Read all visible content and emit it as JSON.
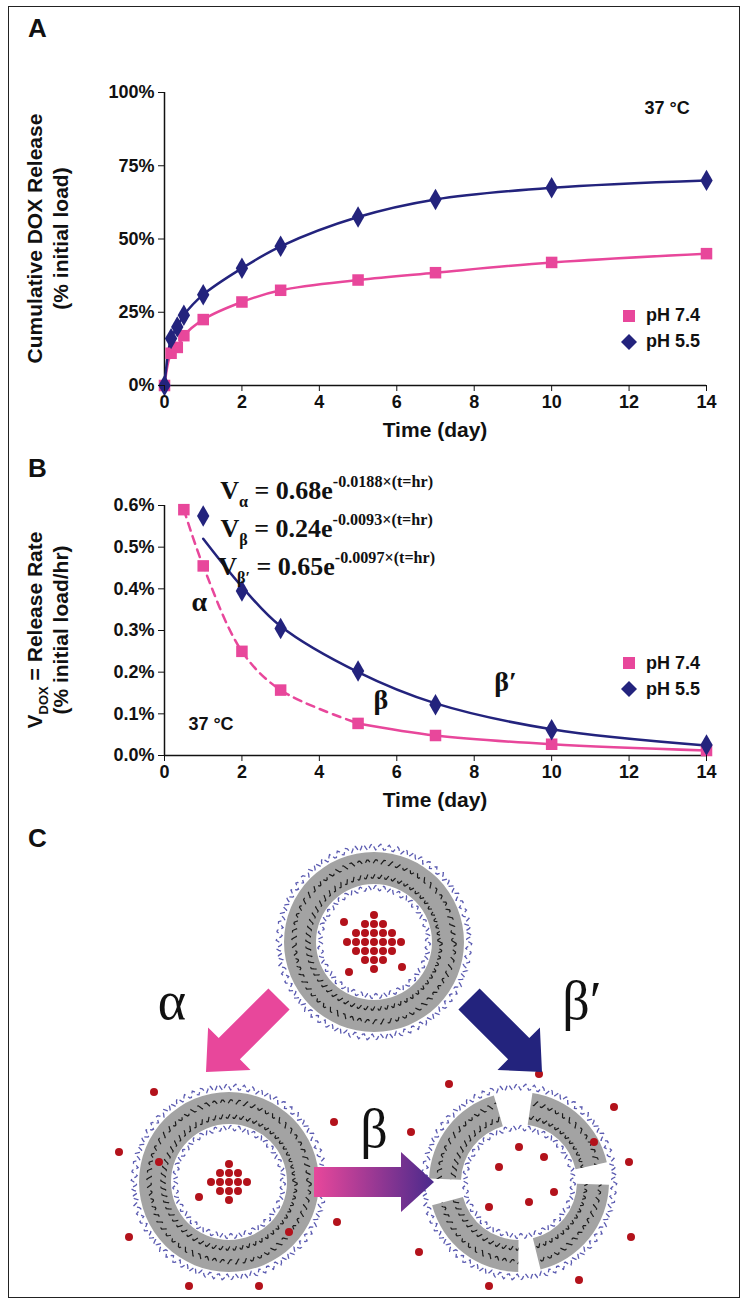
{
  "chart_data": [
    {
      "panel_label": "A",
      "type": "line",
      "xlabel": "Time (day)",
      "ylabel": [
        [
          {
            "text": "Cumulative DOX Release"
          }
        ],
        [
          {
            "text": "(% initial load)"
          }
        ]
      ],
      "annotations": [
        "37 °C"
      ],
      "xlim": [
        0,
        14
      ],
      "xticks": [
        0,
        2,
        4,
        6,
        8,
        10,
        12,
        14
      ],
      "ylim": [
        0,
        100
      ],
      "yticks": [
        {
          "value": 0,
          "label": "0%"
        },
        {
          "value": 25,
          "label": "25%"
        },
        {
          "value": 50,
          "label": "50%"
        },
        {
          "value": 75,
          "label": "75%"
        },
        {
          "value": 100,
          "label": "100%"
        }
      ],
      "legend": "right",
      "series": [
        {
          "name": "pH 7.4",
          "color": "#e8479b",
          "marker": "square",
          "x": [
            0,
            0.17,
            0.33,
            0.5,
            1,
            2,
            3,
            5,
            7,
            10,
            14
          ],
          "values": [
            0,
            11,
            13,
            17,
            22.5,
            28.5,
            32.5,
            36,
            38.5,
            42,
            45
          ]
        },
        {
          "name": "pH 5.5",
          "color": "#23237d",
          "marker": "diamond",
          "x": [
            0,
            0.17,
            0.33,
            0.5,
            1,
            2,
            3,
            5,
            7,
            10,
            14
          ],
          "values": [
            0,
            16,
            20,
            24,
            31,
            40,
            47.5,
            57.5,
            63.5,
            67.5,
            70
          ]
        }
      ]
    },
    {
      "panel_label": "B",
      "type": "scatter",
      "xlabel": "Time (day)",
      "ylabel": [
        [
          {
            "text": "V"
          },
          {
            "text": "DOX",
            "sub": true
          },
          {
            "text": " = Release Rate"
          }
        ],
        [
          {
            "text": "(% initial load/hr)"
          }
        ]
      ],
      "annotations": [
        "37 °C"
      ],
      "equations": [
        [
          {
            "text": "V"
          },
          {
            "text": "α",
            "sub": true
          },
          {
            "text": " = 0.68e"
          },
          {
            "text": "-0.0188×(t=hr)",
            "sup": true
          }
        ],
        [
          {
            "text": "V"
          },
          {
            "text": "β",
            "sub": true
          },
          {
            "text": " = 0.24e"
          },
          {
            "text": "-0.0093×(t=hr)",
            "sup": true
          }
        ],
        [
          {
            "text": "V"
          },
          {
            "text": "β′",
            "sub": true
          },
          {
            "text": " = 0.65e"
          },
          {
            "text": "-0.0097×(t=hr)",
            "sup": true
          }
        ]
      ],
      "xlim": [
        0,
        14
      ],
      "xticks": [
        0,
        2,
        4,
        6,
        8,
        10,
        12,
        14
      ],
      "ylim": [
        0,
        0.6
      ],
      "yticks": [
        {
          "value": 0,
          "label": "0.0%"
        },
        {
          "value": 0.1,
          "label": "0.1%"
        },
        {
          "value": 0.2,
          "label": "0.2%"
        },
        {
          "value": 0.3,
          "label": "0.3%"
        },
        {
          "value": 0.4,
          "label": "0.4%"
        },
        {
          "value": 0.5,
          "label": "0.5%"
        },
        {
          "value": 0.6,
          "label": "0.6%"
        }
      ],
      "legend": "right",
      "series": [
        {
          "name": "pH 7.4",
          "type": "scatter",
          "color": "#e8479b",
          "marker": "square",
          "x": [
            0.5,
            1,
            2,
            3,
            5,
            7,
            10,
            14
          ],
          "values": [
            0.59,
            0.455,
            0.25,
            0.157,
            0.077,
            0.048,
            0.027,
            0.012
          ]
        },
        {
          "name": "pH 5.5",
          "type": "scatter",
          "color": "#23237d",
          "marker": "diamond",
          "x": [
            1,
            2,
            3,
            5,
            7,
            10,
            14
          ],
          "values": [
            0.575,
            0.395,
            0.305,
            0.203,
            0.122,
            0.062,
            0.025
          ]
        },
        {
          "name": "α",
          "type": "line",
          "color": "#e8479b",
          "line_style": "dashed",
          "x": [
            0.5,
            1,
            2,
            3,
            5
          ],
          "values": [
            0.59,
            0.455,
            0.25,
            0.157,
            0.077
          ]
        },
        {
          "name": "β",
          "type": "line",
          "color": "#e8479b",
          "line_style": "solid",
          "x": [
            5,
            7,
            10,
            14
          ],
          "values": [
            0.077,
            0.048,
            0.027,
            0.012
          ]
        },
        {
          "name": "β′",
          "type": "line",
          "color": "#23237d",
          "line_style": "solid",
          "x": [
            1,
            2,
            3,
            5,
            7,
            10,
            14
          ],
          "values": [
            0.52,
            0.405,
            0.31,
            0.2,
            0.125,
            0.063,
            0.024
          ]
        }
      ]
    }
  ],
  "diagram": {
    "panel_label": "C",
    "arrows": [
      {
        "label": "α",
        "color": "#e8479b"
      },
      {
        "label": "β",
        "colors": [
          "#e8479b",
          "#4b2a8c"
        ]
      },
      {
        "label": "β′",
        "color": "#23237d"
      }
    ]
  }
}
